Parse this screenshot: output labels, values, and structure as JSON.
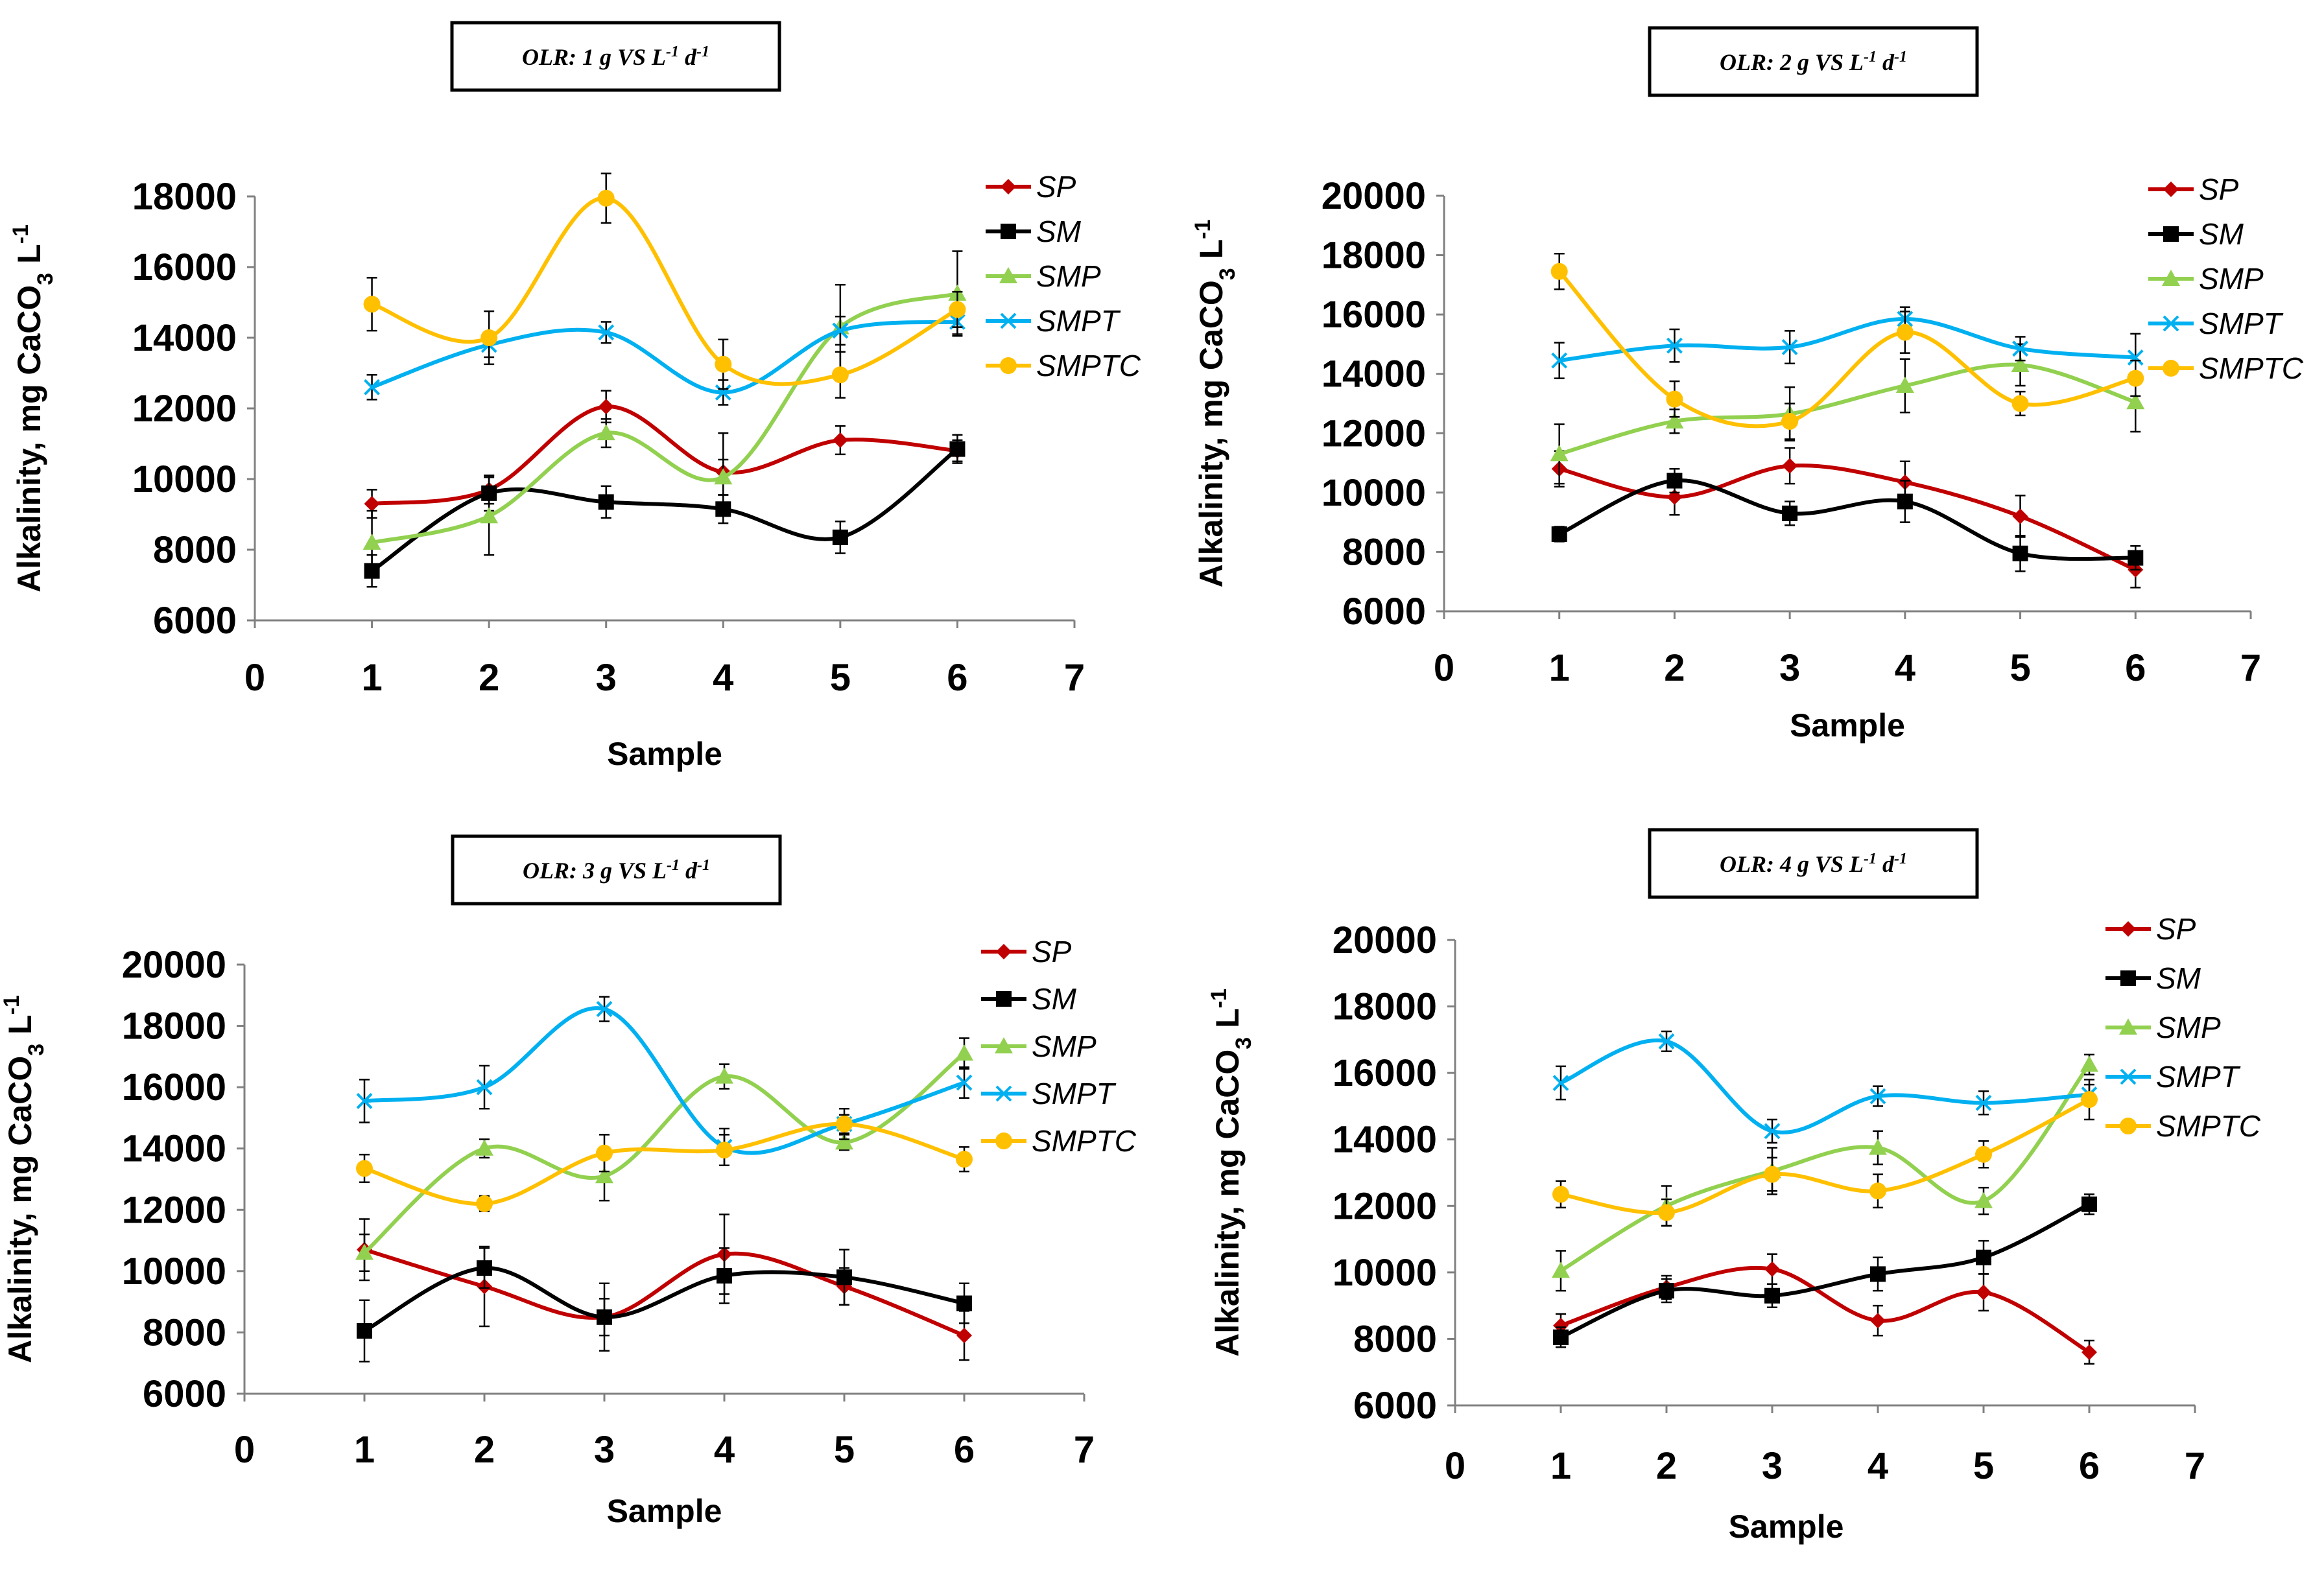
{
  "chart_data": [
    {
      "type": "line",
      "title_parts": [
        "OLR: 1 g VS L",
        "-1",
        " d",
        "-1"
      ],
      "xlabel": "Sample",
      "ylabel_parts": [
        "Alkalinity, mg CaCO",
        "3",
        " L",
        "-1"
      ],
      "xlim": [
        0,
        7
      ],
      "ylim": [
        6000,
        18000
      ],
      "xticks": [
        "0",
        "1",
        "2",
        "3",
        "4",
        "5",
        "6",
        "7"
      ],
      "yticks": [
        "6000",
        "8000",
        "10000",
        "12000",
        "14000",
        "16000",
        "18000"
      ],
      "x": [
        1,
        2,
        3,
        4,
        5,
        6
      ],
      "legend_position": "top-right",
      "series": [
        {
          "name": "SP",
          "color": "#C00000",
          "marker": "diamond",
          "values": [
            9300,
            9700,
            12050,
            10200,
            11100,
            10800
          ],
          "errors": [
            400,
            400,
            450,
            1100,
            400,
            300
          ]
        },
        {
          "name": "SM",
          "color": "#000000",
          "marker": "square",
          "values": [
            7400,
            9600,
            9350,
            9150,
            8350,
            10850
          ],
          "errors": [
            450,
            500,
            450,
            400,
            450,
            400
          ]
        },
        {
          "name": "SMP",
          "color": "#92D050",
          "marker": "triangle",
          "values": [
            8200,
            8950,
            11300,
            10050,
            14300,
            15250
          ],
          "errors": [
            900,
            1100,
            400,
            500,
            1200,
            1200
          ]
        },
        {
          "name": "SMPT",
          "color": "#00B0F0",
          "marker": "x",
          "values": [
            12600,
            13800,
            14150,
            12450,
            14200,
            14450
          ],
          "errors": [
            350,
            350,
            300,
            350,
            400,
            350
          ]
        },
        {
          "name": "SMPTC",
          "color": "#FFC000",
          "marker": "circle",
          "values": [
            14950,
            14000,
            17950,
            13250,
            12950,
            14800
          ],
          "errors": [
            750,
            750,
            700,
            700,
            650,
            500
          ]
        }
      ]
    },
    {
      "type": "line",
      "title_parts": [
        "OLR: 2 g VS L",
        "-1",
        " d",
        "-1"
      ],
      "xlabel": "Sample",
      "ylabel_parts": [
        "Alkalinity, mg CaCO",
        "3",
        " L",
        "-1"
      ],
      "xlim": [
        0,
        7
      ],
      "ylim": [
        6000,
        20000
      ],
      "xticks": [
        "0",
        "1",
        "2",
        "3",
        "4",
        "5",
        "6",
        "7"
      ],
      "yticks": [
        "6000",
        "8000",
        "10000",
        "12000",
        "14000",
        "16000",
        "18000",
        "20000"
      ],
      "x": [
        1,
        2,
        3,
        4,
        5,
        6
      ],
      "legend_position": "top-right",
      "series": [
        {
          "name": "SP",
          "color": "#C00000",
          "marker": "diamond",
          "values": [
            10800,
            9850,
            10900,
            10350,
            9200,
            7400
          ],
          "errors": [
            600,
            600,
            600,
            700,
            700,
            600
          ]
        },
        {
          "name": "SM",
          "color": "#000000",
          "marker": "square",
          "values": [
            8600,
            10400,
            9300,
            9700,
            7950,
            7800
          ],
          "errors": [
            250,
            400,
            400,
            700,
            600,
            400
          ]
        },
        {
          "name": "SMP",
          "color": "#92D050",
          "marker": "triangle",
          "values": [
            11300,
            12400,
            12650,
            13600,
            14300,
            13050
          ],
          "errors": [
            1000,
            400,
            900,
            900,
            700,
            1000
          ]
        },
        {
          "name": "SMPT",
          "color": "#00B0F0",
          "marker": "x",
          "values": [
            14450,
            14950,
            14900,
            15850,
            14850,
            14550
          ],
          "errors": [
            600,
            550,
            550,
            400,
            400,
            800
          ]
        },
        {
          "name": "SMPTC",
          "color": "#FFC000",
          "marker": "circle",
          "values": [
            17450,
            13150,
            12400,
            15400,
            13000,
            13850
          ],
          "errors": [
            600,
            600,
            600,
            700,
            400,
            600
          ]
        }
      ]
    },
    {
      "type": "line",
      "title_parts": [
        "OLR: 3 g VS L",
        "-1",
        " d",
        "-1"
      ],
      "xlabel": "Sample",
      "ylabel_parts": [
        "Alkalinity, mg CaCO",
        "3",
        " L",
        "-1"
      ],
      "xlim": [
        0,
        7
      ],
      "ylim": [
        6000,
        20000
      ],
      "xticks": [
        "0",
        "1",
        "2",
        "3",
        "4",
        "5",
        "6",
        "7"
      ],
      "yticks": [
        "6000",
        "8000",
        "10000",
        "12000",
        "14000",
        "16000",
        "18000",
        "20000"
      ],
      "x": [
        1,
        2,
        3,
        4,
        5,
        6
      ],
      "legend_position": "top-right",
      "series": [
        {
          "name": "SP",
          "color": "#C00000",
          "marker": "diamond",
          "values": [
            10700,
            9500,
            8500,
            10550,
            9500,
            7900
          ],
          "errors": [
            1000,
            1300,
            600,
            1300,
            600,
            800
          ]
        },
        {
          "name": "SM",
          "color": "#000000",
          "marker": "square",
          "values": [
            8050,
            10100,
            8500,
            9850,
            9800,
            8950
          ],
          "errors": [
            1000,
            650,
            1100,
            900,
            900,
            650
          ]
        },
        {
          "name": "SMP",
          "color": "#92D050",
          "marker": "triangle",
          "values": [
            10600,
            14000,
            13100,
            16350,
            14200,
            17100
          ],
          "errors": [
            600,
            300,
            800,
            400,
            250,
            500
          ]
        },
        {
          "name": "SMPT",
          "color": "#00B0F0",
          "marker": "x",
          "values": [
            15550,
            16000,
            18550,
            14050,
            14800,
            16150
          ],
          "errors": [
            700,
            700,
            400,
            600,
            500,
            500
          ]
        },
        {
          "name": "SMPTC",
          "color": "#FFC000",
          "marker": "circle",
          "values": [
            13350,
            12200,
            13850,
            13950,
            14800,
            13650
          ],
          "errors": [
            450,
            250,
            600,
            500,
            300,
            400
          ]
        }
      ]
    },
    {
      "type": "line",
      "title_parts": [
        "OLR: 4 g VS L",
        "-1",
        " d",
        "-1"
      ],
      "xlabel": "Sample",
      "ylabel_parts": [
        "Alkalinity, mg CaCO",
        "3",
        " L",
        "-1"
      ],
      "xlim": [
        0,
        7
      ],
      "ylim": [
        6000,
        20000
      ],
      "xticks": [
        "0",
        "1",
        "2",
        "3",
        "4",
        "5",
        "6",
        "7"
      ],
      "yticks": [
        "6000",
        "8000",
        "10000",
        "12000",
        "14000",
        "16000",
        "18000",
        "20000"
      ],
      "x": [
        1,
        2,
        3,
        4,
        5,
        6
      ],
      "legend_position": "top-right",
      "series": [
        {
          "name": "SP",
          "color": "#C00000",
          "marker": "diamond",
          "values": [
            8400,
            9550,
            10100,
            8550,
            9400,
            7600
          ],
          "errors": [
            350,
            350,
            450,
            450,
            550,
            350
          ]
        },
        {
          "name": "SM",
          "color": "#000000",
          "marker": "square",
          "values": [
            8050,
            9450,
            9300,
            9950,
            10450,
            12050
          ],
          "errors": [
            300,
            350,
            350,
            500,
            500,
            300
          ]
        },
        {
          "name": "SMP",
          "color": "#92D050",
          "marker": "triangle",
          "values": [
            10050,
            12000,
            13050,
            13750,
            12150,
            16250
          ],
          "errors": [
            600,
            600,
            700,
            500,
            400,
            300
          ]
        },
        {
          "name": "SMPT",
          "color": "#00B0F0",
          "marker": "x",
          "values": [
            15700,
            16950,
            14250,
            15300,
            15100,
            15350
          ],
          "errors": [
            500,
            300,
            350,
            300,
            350,
            300
          ]
        },
        {
          "name": "SMPTC",
          "color": "#FFC000",
          "marker": "circle",
          "values": [
            12350,
            11800,
            12950,
            12450,
            13550,
            15200
          ],
          "errors": [
            400,
            400,
            500,
            500,
            400,
            600
          ]
        }
      ]
    }
  ]
}
